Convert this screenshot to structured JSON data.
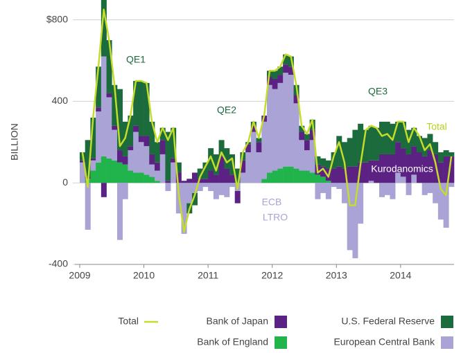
{
  "chart_data": {
    "type": "bar",
    "stacked": true,
    "y_axis_label": "BILLION",
    "categories": [
      "2009",
      null,
      null,
      null,
      null,
      null,
      null,
      null,
      null,
      null,
      null,
      null,
      "2010",
      null,
      null,
      null,
      null,
      null,
      null,
      null,
      null,
      null,
      null,
      null,
      "2011",
      null,
      null,
      null,
      null,
      null,
      null,
      null,
      null,
      null,
      null,
      null,
      "2012",
      null,
      null,
      null,
      null,
      null,
      null,
      null,
      null,
      null,
      null,
      null,
      "2013",
      null,
      null,
      null,
      null,
      null,
      null,
      null,
      null,
      null,
      null,
      null,
      "2014",
      null,
      null,
      null,
      null,
      null,
      null,
      null,
      null,
      null
    ],
    "ylim": [
      -400,
      880
    ],
    "yticks": [
      {
        "value": 800,
        "label": "$800"
      },
      400,
      0,
      -400
    ],
    "grid": true,
    "legend": "bottom-right",
    "annotations": [
      {
        "text": "QE1"
      },
      {
        "text": "QE2"
      },
      {
        "text": "QE3"
      },
      {
        "text": "ECB"
      },
      {
        "text": "LTRO"
      },
      {
        "text": "Kurodanomics"
      },
      {
        "text": "Total"
      }
    ],
    "series": [
      {
        "name": "Total",
        "type": "line",
        "color": "#c6dc2b",
        "values": [
          150,
          -20,
          320,
          570,
          850,
          700,
          480,
          180,
          220,
          330,
          500,
          500,
          490,
          300,
          200,
          270,
          210,
          270,
          -50,
          -240,
          -130,
          -60,
          30,
          80,
          130,
          60,
          150,
          100,
          120,
          -30,
          150,
          200,
          300,
          220,
          330,
          550,
          550,
          570,
          630,
          620,
          480,
          280,
          240,
          310,
          50,
          70,
          30,
          130,
          200,
          100,
          -110,
          -110,
          90,
          260,
          280,
          270,
          230,
          240,
          210,
          300,
          300,
          200,
          270,
          230,
          160,
          190,
          100,
          -30,
          -60,
          130
        ]
      },
      {
        "name": "Bank of Japan",
        "color": "#5b2283",
        "values": [
          10,
          10,
          10,
          20,
          -70,
          20,
          20,
          60,
          40,
          20,
          30,
          30,
          50,
          50,
          40,
          70,
          10,
          20,
          50,
          10,
          20,
          50,
          20,
          20,
          60,
          40,
          130,
          70,
          40,
          -60,
          60,
          40,
          30,
          50,
          30,
          40,
          50,
          40,
          40,
          40,
          40,
          40,
          50,
          50,
          50,
          50,
          60,
          70,
          80,
          70,
          80,
          80,
          100,
          100,
          100,
          110,
          140,
          140,
          140,
          150,
          140,
          140,
          140,
          150,
          130,
          160,
          140,
          100,
          130,
          130
        ]
      },
      {
        "name": "U.S. Federal Reserve",
        "color": "#1b6b3c",
        "values": [
          40,
          180,
          200,
          200,
          300,
          260,
          200,
          300,
          170,
          150,
          220,
          270,
          260,
          160,
          100,
          60,
          240,
          150,
          50,
          0,
          -50,
          -60,
          50,
          80,
          110,
          100,
          80,
          100,
          100,
          70,
          40,
          10,
          20,
          20,
          0,
          30,
          40,
          40,
          50,
          50,
          50,
          30,
          30,
          50,
          40,
          40,
          40,
          80,
          150,
          130,
          140,
          180,
          190,
          160,
          170,
          160,
          160,
          160,
          150,
          100,
          130,
          120,
          90,
          80,
          90,
          80,
          60,
          50,
          30,
          20
        ]
      },
      {
        "name": "Bank of England",
        "color": "#22b44c",
        "values": [
          0,
          20,
          60,
          100,
          130,
          120,
          110,
          100,
          90,
          60,
          50,
          50,
          40,
          30,
          10,
          0,
          0,
          0,
          0,
          0,
          0,
          0,
          0,
          0,
          0,
          0,
          0,
          0,
          0,
          0,
          0,
          0,
          0,
          0,
          20,
          50,
          60,
          70,
          80,
          80,
          70,
          60,
          60,
          50,
          40,
          30,
          10,
          0,
          0,
          0,
          0,
          0,
          0,
          0,
          0,
          0,
          0,
          0,
          0,
          0,
          0,
          0,
          0,
          0,
          0,
          0,
          0,
          0,
          0,
          0
        ]
      },
      {
        "name": "European Central Bank",
        "color": "#a9a3d6",
        "values": [
          100,
          -230,
          50,
          250,
          490,
          300,
          150,
          -280,
          -80,
          100,
          200,
          150,
          140,
          60,
          50,
          140,
          -40,
          100,
          -150,
          -250,
          -100,
          -50,
          -40,
          -20,
          -40,
          -80,
          -60,
          -70,
          -20,
          -40,
          50,
          150,
          250,
          150,
          280,
          430,
          400,
          420,
          460,
          450,
          320,
          150,
          100,
          160,
          -80,
          -50,
          -80,
          -20,
          -30,
          -100,
          -330,
          -370,
          -200,
          0,
          10,
          0,
          -70,
          -60,
          -80,
          50,
          30,
          -60,
          40,
          0,
          -60,
          -50,
          -100,
          -180,
          -220,
          -20
        ]
      }
    ]
  }
}
